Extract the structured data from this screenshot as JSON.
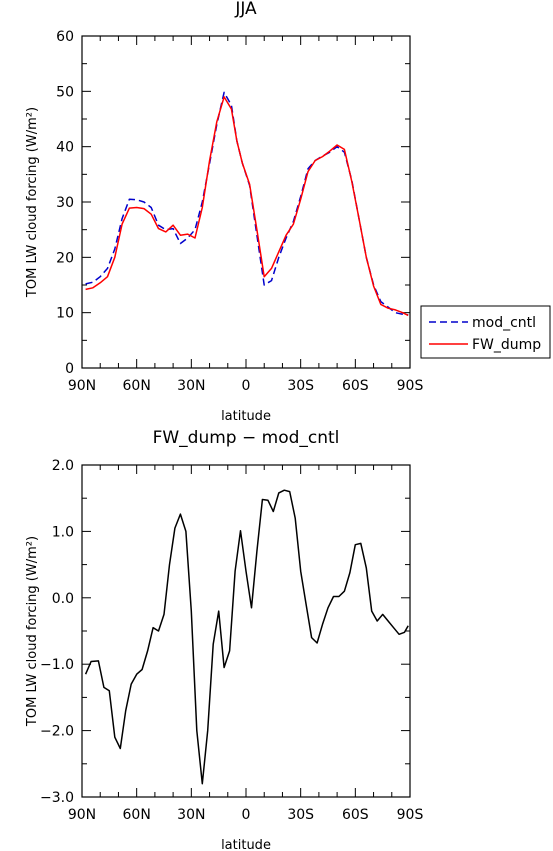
{
  "chart_data": [
    {
      "type": "line",
      "title": "JJA",
      "xlabel": "latitude",
      "ylabel": "TOM LW cloud forcing (W/m²)",
      "xlim": [
        90,
        -90
      ],
      "ylim": [
        0,
        60
      ],
      "x_tick_values": [
        90,
        60,
        30,
        0,
        -30,
        -60,
        -90
      ],
      "x_tick_labels": [
        "90N",
        "60N",
        "30N",
        "0",
        "30S",
        "60S",
        "90S"
      ],
      "y_tick_values": [
        0,
        10,
        20,
        30,
        40,
        50,
        60
      ],
      "y_tick_labels": [
        "0",
        "10",
        "20",
        "30",
        "40",
        "50",
        "60"
      ],
      "legend_position": "right",
      "series": [
        {
          "name": "mod_cntl",
          "color": "#0000cc",
          "dash": "dashed",
          "x": [
            88,
            84,
            80,
            76,
            72,
            68,
            64,
            60,
            56,
            52,
            48,
            44,
            40,
            36,
            32,
            28,
            24,
            20,
            16,
            12,
            8,
            5,
            2,
            -2,
            -6,
            -10,
            -14,
            -18,
            -22,
            -26,
            -30,
            -34,
            -38,
            -42,
            -46,
            -50,
            -54,
            -58,
            -62,
            -66,
            -70,
            -74,
            -78,
            -82,
            -86,
            -89
          ],
          "y": [
            15.2,
            15.5,
            16.5,
            18.0,
            21.5,
            27.0,
            30.5,
            30.4,
            30.0,
            29.0,
            25.8,
            25.0,
            25.2,
            22.5,
            23.5,
            25.0,
            30.0,
            37.0,
            44.0,
            49.8,
            47.5,
            41.0,
            37.0,
            33.0,
            24.0,
            15.0,
            15.8,
            20.0,
            23.5,
            26.5,
            31.0,
            36.0,
            37.5,
            38.3,
            39.0,
            40.0,
            39.0,
            34.0,
            27.0,
            20.0,
            15.0,
            12.0,
            11.0,
            10.0,
            9.7,
            9.6
          ]
        },
        {
          "name": "FW_dump",
          "color": "#ff0000",
          "dash": "solid",
          "x": [
            88,
            84,
            80,
            76,
            72,
            68,
            64,
            60,
            56,
            52,
            48,
            44,
            40,
            36,
            32,
            28,
            24,
            20,
            16,
            12,
            8,
            5,
            2,
            -2,
            -6,
            -10,
            -14,
            -18,
            -22,
            -26,
            -30,
            -34,
            -38,
            -42,
            -46,
            -50,
            -54,
            -58,
            -62,
            -66,
            -70,
            -74,
            -78,
            -82,
            -86,
            -89
          ],
          "y": [
            14.2,
            14.5,
            15.4,
            16.5,
            20.0,
            26.0,
            28.9,
            29.0,
            28.8,
            27.8,
            25.2,
            24.6,
            25.8,
            24.0,
            24.2,
            23.5,
            29.0,
            37.5,
            44.5,
            49.0,
            46.8,
            41.0,
            37.0,
            33.2,
            25.0,
            16.5,
            18.0,
            21.0,
            24.0,
            26.0,
            30.5,
            35.5,
            37.5,
            38.2,
            39.2,
            40.3,
            39.5,
            33.8,
            27.0,
            20.0,
            14.8,
            11.5,
            10.8,
            10.5,
            10.0,
            9.5
          ]
        }
      ]
    },
    {
      "type": "line",
      "title": "FW_dump − mod_cntl",
      "xlabel": "latitude",
      "ylabel": "TOM LW cloud forcing (W/m²)",
      "xlim": [
        90,
        -90
      ],
      "ylim": [
        -3.0,
        2.0
      ],
      "x_tick_values": [
        90,
        60,
        30,
        0,
        -30,
        -60,
        -90
      ],
      "x_tick_labels": [
        "90N",
        "60N",
        "30N",
        "0",
        "30S",
        "60S",
        "90S"
      ],
      "y_tick_values": [
        2.0,
        1.0,
        0.0,
        -1.0,
        -2.0,
        -3.0
      ],
      "y_tick_labels": [
        "2.0",
        "1.0",
        "0.0",
        "−1.0",
        "−2.0",
        "−3.0"
      ],
      "series": [
        {
          "color": "#000000",
          "dash": "solid",
          "x": [
            88,
            85,
            81,
            78,
            75,
            72,
            69,
            66,
            63,
            60,
            57,
            54,
            51,
            48,
            45,
            42,
            39,
            36,
            33,
            30,
            27,
            24,
            21,
            18,
            15,
            12,
            9,
            6,
            3,
            0,
            -3,
            -6,
            -9,
            -12,
            -15,
            -18,
            -21,
            -24,
            -27,
            -30,
            -33,
            -36,
            -39,
            -42,
            -45,
            -48,
            -51,
            -54,
            -57,
            -60,
            -63,
            -66,
            -69,
            -72,
            -75,
            -78,
            -81,
            -84,
            -87,
            -89
          ],
          "y": [
            -1.15,
            -0.96,
            -0.95,
            -1.35,
            -1.4,
            -2.1,
            -2.27,
            -1.7,
            -1.3,
            -1.15,
            -1.08,
            -0.8,
            -0.45,
            -0.5,
            -0.25,
            0.5,
            1.05,
            1.26,
            1.0,
            -0.2,
            -2.0,
            -2.8,
            -2.0,
            -0.7,
            -0.2,
            -1.05,
            -0.8,
            0.4,
            1.01,
            0.4,
            -0.15,
            0.7,
            1.48,
            1.47,
            1.3,
            1.58,
            1.62,
            1.6,
            1.2,
            0.4,
            -0.1,
            -0.6,
            -0.68,
            -0.4,
            -0.15,
            0.02,
            0.02,
            0.1,
            0.38,
            0.8,
            0.82,
            0.45,
            -0.2,
            -0.35,
            -0.25,
            -0.35,
            -0.45,
            -0.55,
            -0.52,
            -0.42
          ]
        }
      ]
    }
  ]
}
